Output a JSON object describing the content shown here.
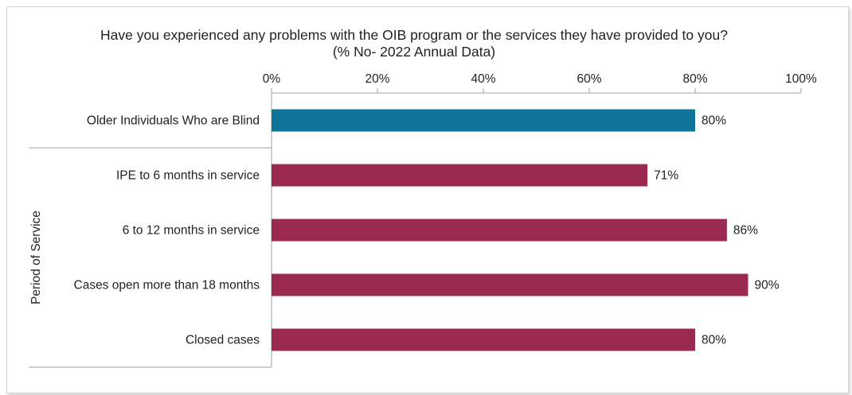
{
  "chart_data": {
    "type": "bar",
    "orientation": "horizontal",
    "title": "Have you experienced any problems with the OIB program or the services they have provided to you? (% No- 2022 Annual Data)",
    "xlim": [
      0,
      100
    ],
    "x_ticks": [
      "0%",
      "20%",
      "40%",
      "60%",
      "80%",
      "100%"
    ],
    "x_tick_values": [
      0,
      20,
      40,
      60,
      80,
      100
    ],
    "x_axis_position": "top",
    "group_label": "Period of Service",
    "categories": [
      "Older Individuals Who are Blind",
      "IPE to 6 months in service",
      "6 to 12 months in service",
      "Cases open more than 18 months",
      "Closed cases"
    ],
    "values": [
      80,
      71,
      86,
      90,
      80
    ],
    "data_labels": [
      "80%",
      "71%",
      "86%",
      "90%",
      "80%"
    ],
    "colors": [
      "#0e7499",
      "#9b2a52",
      "#9b2a52",
      "#9b2a52",
      "#9b2a52"
    ],
    "grid": false
  }
}
